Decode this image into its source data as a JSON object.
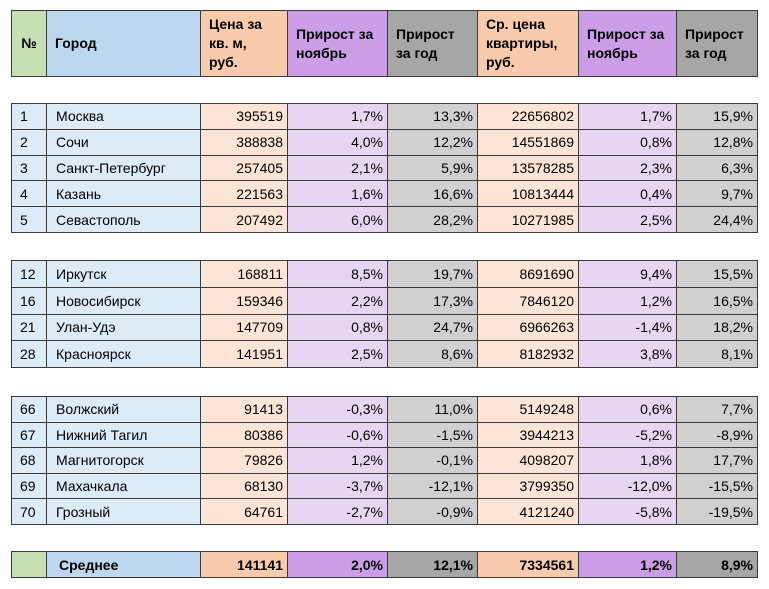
{
  "table": {
    "header": [
      "№",
      "Город",
      "Цена за кв. м, руб.",
      "Прирост за ноябрь",
      "Прирост за год",
      "Ср. цена квартиры, руб.",
      "Прирост за ноябрь",
      "Прирост за год"
    ],
    "groups": [
      [
        [
          "1",
          "Москва",
          "395519",
          "1,7%",
          "13,3%",
          "22656802",
          "1,7%",
          "15,9%"
        ],
        [
          "2",
          "Сочи",
          "388838",
          "4,0%",
          "12,2%",
          "14551869",
          "0,8%",
          "12,8%"
        ],
        [
          "3",
          "Санкт-Петербург",
          "257405",
          "2,1%",
          "5,9%",
          "13578285",
          "2,3%",
          "6,3%"
        ],
        [
          "4",
          "Казань",
          "221563",
          "1,6%",
          "16,6%",
          "10813444",
          "0,4%",
          "9,7%"
        ],
        [
          "5",
          "Севастополь",
          "207492",
          "6,0%",
          "28,2%",
          "10271985",
          "2,5%",
          "24,4%"
        ]
      ],
      [
        [
          "12",
          "Иркутск",
          "168811",
          "8,5%",
          "19,7%",
          "8691690",
          "9,4%",
          "15,5%"
        ],
        [
          "16",
          "Новосибирск",
          "159346",
          "2,2%",
          "17,3%",
          "7846120",
          "1,2%",
          "16,5%"
        ],
        [
          "21",
          "Улан-Удэ",
          "147709",
          "0,8%",
          "24,7%",
          "6966263",
          "-1,4%",
          "18,2%"
        ],
        [
          "28",
          "Красноярск",
          "141951",
          "2,5%",
          "8,6%",
          "8182932",
          "3,8%",
          "8,1%"
        ]
      ],
      [
        [
          "66",
          "Волжский",
          "91413",
          "-0,3%",
          "11,0%",
          "5149248",
          "0,6%",
          "7,7%"
        ],
        [
          "67",
          "Нижний Тагил",
          "80386",
          "-0,6%",
          "-1,5%",
          "3944213",
          "-5,2%",
          "-8,9%"
        ],
        [
          "68",
          "Магнитогорск",
          "79826",
          "1,2%",
          "-0,1%",
          "4098207",
          "1,8%",
          "17,7%"
        ],
        [
          "69",
          "Махачкала",
          "68130",
          "-3,7%",
          "-12,1%",
          "3799350",
          "-12,0%",
          "-15,5%"
        ],
        [
          "70",
          "Грозный",
          "64761",
          "-2,7%",
          "-0,9%",
          "4121240",
          "-5,8%",
          "-19,5%"
        ]
      ]
    ],
    "average": {
      "label": "Среднее",
      "values": [
        "141141",
        "2,0%",
        "12,1%",
        "7334561",
        "1,2%",
        "8,9%"
      ]
    }
  }
}
